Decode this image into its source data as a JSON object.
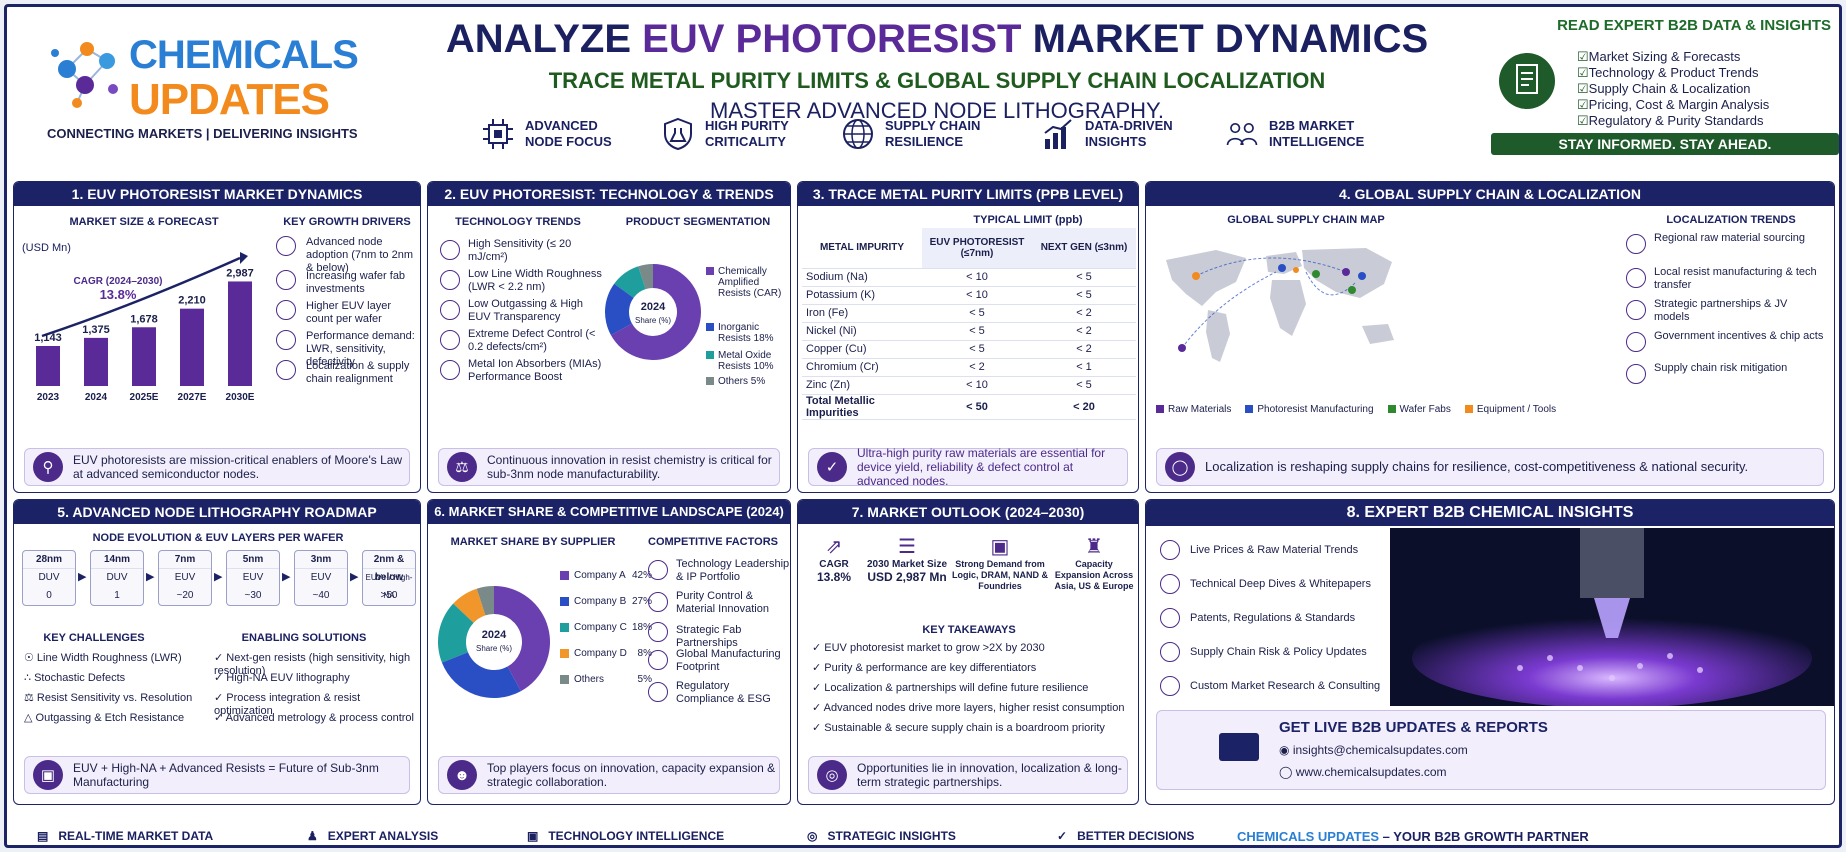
{
  "header": {
    "logo_top": "CHEMICALS",
    "logo_bottom": "UPDATES",
    "logo_tagline": "CONNECTING MARKETS | DELIVERING INSIGHTS",
    "title_a": "ANALYZE ",
    "title_b": "EUV PHOTORESIST",
    "title_c": " MARKET DYNAMICS",
    "subtitle": "TRACE METAL PURITY LIMITS & GLOBAL SUPPLY CHAIN LOCALIZATION",
    "subtitle2": "MASTER ADVANCED NODE LITHOGRAPHY.",
    "features": [
      "ADVANCED NODE FOCUS",
      "HIGH PURITY CRITICALITY",
      "SUPPLY CHAIN RESILIENCE",
      "DATA-DRIVEN INSIGHTS",
      "B2B MARKET INTELLIGENCE"
    ],
    "read_title": "READ EXPERT B2B DATA & INSIGHTS",
    "read_items": [
      "Market Sizing & Forecasts",
      "Technology & Product Trends",
      "Supply Chain & Localization",
      "Pricing, Cost & Margin Analysis",
      "Regulatory & Purity Standards"
    ],
    "read_bar": "STAY INFORMED. STAY AHEAD."
  },
  "p1": {
    "title": "1. EUV PHOTORESIST MARKET DYNAMICS",
    "chart_title": "MARKET SIZE & FORECAST",
    "unit": "(USD Mn)",
    "cagr_label": "CAGR (2024–2030)",
    "cagr": "13.8%",
    "drivers_title": "KEY GROWTH DRIVERS",
    "drivers": [
      "Advanced node adoption (7nm to 2nm & below)",
      "Increasing wafer fab investments",
      "Higher EUV layer count per wafer",
      "Performance demand: LWR, sensitivity, defectivity",
      "Localization & supply chain realignment"
    ],
    "footer": "EUV photoresists are mission-critical enablers of Moore's Law at advanced semiconductor nodes."
  },
  "p2": {
    "title": "2. EUV PHOTORESIST: TECHNOLOGY & TRENDS",
    "trends_title": "TECHNOLOGY TRENDS",
    "seg_title": "PRODUCT SEGMENTATION",
    "trends": [
      "High Sensitivity (≤ 20 mJ/cm²)",
      "Low Line Width Roughness (LWR < 2.2 nm)",
      "Low Outgassing & High EUV Transparency",
      "Extreme Defect Control (< 0.2 defects/cm²)",
      "Metal Ion Absorbers (MIAs) Performance Boost"
    ],
    "donut_center": "2024",
    "donut_sub": "Share (%)",
    "footer": "Continuous innovation in resist chemistry is critical for sub-3nm node manufacturability."
  },
  "p3": {
    "title": "3. TRACE METAL PURITY LIMITS (PPB LEVEL)",
    "typical": "TYPICAL LIMIT (ppb)",
    "col0": "METAL IMPURITY",
    "col1": "EUV PHOTORESIST (≤7nm)",
    "col2": "NEXT GEN (≤3nm)",
    "rows": [
      [
        "Sodium (Na)",
        "< 10",
        "< 5"
      ],
      [
        "Potassium (K)",
        "< 10",
        "< 5"
      ],
      [
        "Iron (Fe)",
        "< 5",
        "< 2"
      ],
      [
        "Nickel (Ni)",
        "< 5",
        "< 2"
      ],
      [
        "Copper (Cu)",
        "< 5",
        "< 2"
      ],
      [
        "Chromium (Cr)",
        "< 2",
        "< 1"
      ],
      [
        "Zinc (Zn)",
        "< 10",
        "< 5"
      ],
      [
        "Total Metallic Impurities",
        "< 50",
        "< 20"
      ]
    ],
    "footer": "Ultra-high purity raw materials are essential for device yield, reliability & defect control at advanced nodes."
  },
  "p4": {
    "title": "4. GLOBAL SUPPLY CHAIN & LOCALIZATION",
    "map_title": "GLOBAL SUPPLY CHAIN MAP",
    "trends_title": "LOCALIZATION TRENDS",
    "trends": [
      "Regional raw material sourcing",
      "Local resist manufacturing & tech transfer",
      "Strategic partnerships & JV models",
      "Government incentives & chip acts",
      "Supply chain risk mitigation"
    ],
    "legend": [
      "Raw Materials",
      "Photoresist Manufacturing",
      "Wafer Fabs",
      "Equipment / Tools"
    ],
    "legend_colors": [
      "#5b2a99",
      "#2a4fc4",
      "#2f8a2f",
      "#f28a1e"
    ],
    "footer": "Localization is reshaping supply chains for resilience, cost-competitiveness & national security."
  },
  "p5": {
    "title": "5. ADVANCED NODE LITHOGRAPHY ROADMAP",
    "sub": "NODE EVOLUTION & EUV LAYERS PER WAFER",
    "nodes": [
      [
        "28nm",
        "DUV",
        "0"
      ],
      [
        "14nm",
        "DUV",
        "1"
      ],
      [
        "7nm",
        "EUV",
        "~20"
      ],
      [
        "5nm",
        "EUV",
        "~30"
      ],
      [
        "3nm",
        "EUV",
        "~40"
      ],
      [
        "2nm & below",
        "EUV+ / High-NA",
        ">50"
      ]
    ],
    "ch_title": "KEY CHALLENGES",
    "ch": [
      "Line Width Roughness (LWR)",
      "Stochastic Defects",
      "Resist Sensitivity vs. Resolution",
      "Outgassing & Etch Resistance"
    ],
    "es_title": "ENABLING SOLUTIONS",
    "es": [
      "Next-gen resists (high sensitivity, high resolution)",
      "High-NA EUV lithography",
      "Process integration & resist optimization",
      "Advanced metrology & process control"
    ],
    "footer": "EUV + High-NA + Advanced Resists = Future of Sub-3nm Manufacturing"
  },
  "p6": {
    "title": "6. MARKET SHARE & COMPETITIVE LANDSCAPE (2024)",
    "sub": "MARKET SHARE BY SUPPLIER",
    "cf_title": "COMPETITIVE FACTORS",
    "cf": [
      "Technology Leadership & IP Portfolio",
      "Purity Control & Material Innovation",
      "Strategic Fab Partnerships",
      "Global Manufacturing Footprint",
      "Regulatory Compliance & ESG"
    ],
    "donut_center": "2024",
    "donut_sub": "Share (%)",
    "footer": "Top players focus on innovation, capacity expansion & strategic collaboration."
  },
  "p7": {
    "title": "7. MARKET OUTLOOK (2024–2030)",
    "kpis": [
      [
        "CAGR",
        "13.8%"
      ],
      [
        "2030 Market Size",
        "USD 2,987 Mn"
      ],
      [
        "Strong Demand from Logic, DRAM, NAND & Foundries",
        ""
      ],
      [
        "Capacity Expansion Across Asia, US & Europe",
        ""
      ]
    ],
    "kt_title": "KEY TAKEAWAYS",
    "kt": [
      "EUV photoresist market to grow >2X by 2030",
      "Purity & performance are key differentiators",
      "Localization & partnerships will define future resilience",
      "Advanced nodes drive more layers, higher resist consumption",
      "Sustainable & secure supply chain is a boardroom priority"
    ],
    "footer": "Opportunities lie in innovation, localization & long-term strategic partnerships."
  },
  "p8": {
    "title": "8. EXPERT B2B CHEMICAL INSIGHTS",
    "items": [
      "Live Prices & Raw Material Trends",
      "Technical Deep Dives & Whitepapers",
      "Patents, Regulations & Standards",
      "Supply Chain Risk & Policy Updates",
      "Custom Market Research & Consulting"
    ],
    "cta": "GET LIVE B2B UPDATES & REPORTS",
    "email": "insights@chemicalsupdates.com",
    "web": "www.chemicalsupdates.com"
  },
  "bottom": {
    "items": [
      "REAL-TIME MARKET DATA",
      "EXPERT ANALYSIS",
      "TECHNOLOGY INTELLIGENCE",
      "STRATEGIC INSIGHTS",
      "BETTER DECISIONS"
    ],
    "brand_a": "CHEMICALS UPDATES",
    "brand_b": " – YOUR B2B GROWTH PARTNER"
  },
  "chart_data": [
    {
      "type": "bar",
      "title": "MARKET SIZE & FORECAST",
      "ylabel": "(USD Mn)",
      "categories": [
        "2023",
        "2024",
        "2025E",
        "2027E",
        "2030E"
      ],
      "values": [
        1143,
        1375,
        1678,
        2210,
        2987
      ],
      "value_labels": [
        "1,143",
        "1,375",
        "1,678",
        "2,210",
        "2,987"
      ],
      "ylim": [
        0,
        3200
      ],
      "color": "#5b2a99"
    },
    {
      "type": "pie",
      "title": "PRODUCT SEGMENTATION",
      "categories": [
        "Chemically Amplified Resists (CAR)",
        "Inorganic Resists",
        "Metal Oxide Resists",
        "Others"
      ],
      "values": [
        67,
        18,
        10,
        5
      ],
      "labels": [
        "Chemically Amplified Resists (CAR)",
        "Inorganic Resists 18%",
        "Metal Oxide Resists 10%",
        "Others 5%"
      ],
      "colors": [
        "#6a3fb0",
        "#2a4fc4",
        "#1f9e9e",
        "#7a8a88"
      ]
    },
    {
      "type": "pie",
      "title": "MARKET SHARE BY SUPPLIER",
      "categories": [
        "Company A",
        "Company B",
        "Company C",
        "Company D",
        "Others"
      ],
      "values": [
        42,
        27,
        18,
        8,
        5
      ],
      "labels": [
        "42%",
        "27%",
        "18%",
        "8%",
        "5%"
      ],
      "colors": [
        "#6a3fb0",
        "#2a4fc4",
        "#1f9e9e",
        "#f0962a",
        "#7a8a88"
      ]
    }
  ]
}
